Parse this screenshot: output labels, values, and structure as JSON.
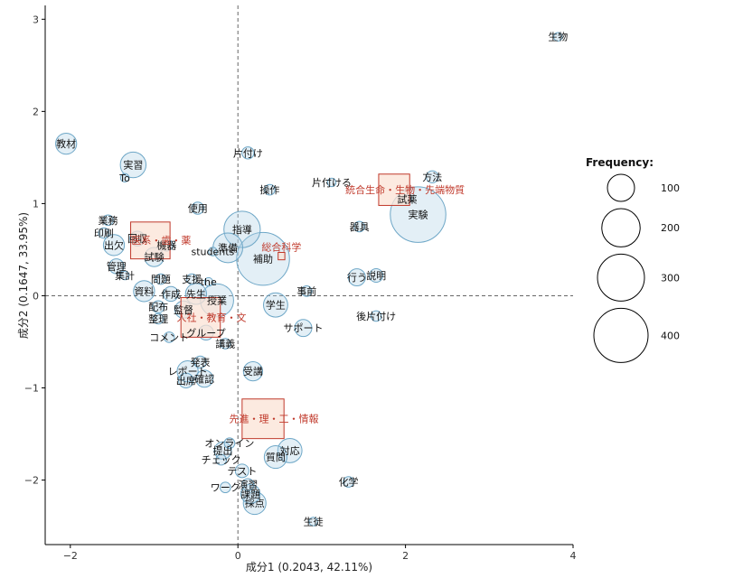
{
  "chart_data": {
    "type": "scatter",
    "subtype": "bubble",
    "title": "",
    "xlabel": "成分1 (0.2043, 42.11%)",
    "ylabel": "成分2 (0.1647, 33.95%)",
    "xlim": [
      -2.3,
      4.0
    ],
    "ylim": [
      -2.7,
      3.15
    ],
    "x_ticks": [
      -2,
      0,
      2,
      4
    ],
    "y_ticks": [
      -2,
      -1,
      0,
      1,
      2,
      3
    ],
    "grid": false,
    "reference_lines": {
      "x": 0,
      "y": 0,
      "style": "dashed"
    },
    "bubble_color": "#aed2e6",
    "bubble_stroke": "#6ea7c7",
    "group_color": "#c0392b",
    "group_fill": "#fbe3d6",
    "legend": {
      "title": "Frequency:",
      "position": "right",
      "sizes": [
        100,
        200,
        300,
        400
      ]
    },
    "points": [
      {
        "label": "生物",
        "x": 3.82,
        "y": 2.81,
        "freq": 10
      },
      {
        "label": "教材",
        "x": -2.05,
        "y": 1.65,
        "freq": 60
      },
      {
        "label": "片付け",
        "x": 0.12,
        "y": 1.55,
        "freq": 20
      },
      {
        "label": "To",
        "x": -1.35,
        "y": 1.28,
        "freq": 10
      },
      {
        "label": "実習",
        "x": -1.25,
        "y": 1.42,
        "freq": 90
      },
      {
        "label": "方法",
        "x": 2.32,
        "y": 1.29,
        "freq": 20
      },
      {
        "label": "片付ける",
        "x": 1.12,
        "y": 1.23,
        "freq": 10
      },
      {
        "label": "操作",
        "x": 0.38,
        "y": 1.15,
        "freq": 15
      },
      {
        "label": "試薬",
        "x": 2.02,
        "y": 1.05,
        "freq": 10
      },
      {
        "label": "実験",
        "x": 2.15,
        "y": 0.88,
        "freq": 420
      },
      {
        "label": "業務",
        "x": -1.55,
        "y": 0.82,
        "freq": 15
      },
      {
        "label": "印刷",
        "x": -1.6,
        "y": 0.68,
        "freq": 15
      },
      {
        "label": "使用",
        "x": -0.48,
        "y": 0.95,
        "freq": 20
      },
      {
        "label": "指導",
        "x": 0.05,
        "y": 0.72,
        "freq": 180
      },
      {
        "label": "回収",
        "x": -1.2,
        "y": 0.62,
        "freq": 30
      },
      {
        "label": "出欠",
        "x": -1.48,
        "y": 0.55,
        "freq": 60
      },
      {
        "label": "機器",
        "x": -0.85,
        "y": 0.55,
        "freq": 20
      },
      {
        "label": "準備",
        "x": -0.12,
        "y": 0.52,
        "freq": 120
      },
      {
        "label": "器具",
        "x": 1.45,
        "y": 0.75,
        "freq": 15
      },
      {
        "label": "試験",
        "x": -1.0,
        "y": 0.42,
        "freq": 50
      },
      {
        "label": "students",
        "x": -0.3,
        "y": 0.48,
        "freq": 10
      },
      {
        "label": "補助",
        "x": 0.3,
        "y": 0.4,
        "freq": 380
      },
      {
        "label": "管理",
        "x": -1.45,
        "y": 0.32,
        "freq": 30
      },
      {
        "label": "説明",
        "x": 1.65,
        "y": 0.22,
        "freq": 25
      },
      {
        "label": "集計",
        "x": -1.35,
        "y": 0.22,
        "freq": 10
      },
      {
        "label": "問題",
        "x": -0.92,
        "y": 0.18,
        "freq": 15
      },
      {
        "label": "支援",
        "x": -0.55,
        "y": 0.18,
        "freq": 15
      },
      {
        "label": "the",
        "x": -0.35,
        "y": 0.15,
        "freq": 10
      },
      {
        "label": "行う",
        "x": 1.42,
        "y": 0.2,
        "freq": 40
      },
      {
        "label": "事前",
        "x": 0.82,
        "y": 0.05,
        "freq": 15
      },
      {
        "label": "資料",
        "x": -1.12,
        "y": 0.05,
        "freq": 60
      },
      {
        "label": "作成",
        "x": -0.8,
        "y": 0.02,
        "freq": 30
      },
      {
        "label": "先生",
        "x": -0.5,
        "y": 0.02,
        "freq": 60
      },
      {
        "label": "授業",
        "x": -0.25,
        "y": -0.05,
        "freq": 150
      },
      {
        "label": "学生",
        "x": 0.45,
        "y": -0.1,
        "freq": 80
      },
      {
        "label": "配布",
        "x": -0.95,
        "y": -0.12,
        "freq": 20
      },
      {
        "label": "監督",
        "x": -0.65,
        "y": -0.15,
        "freq": 40
      },
      {
        "label": "後片付け",
        "x": 1.65,
        "y": -0.22,
        "freq": 15
      },
      {
        "label": "整理",
        "x": -0.95,
        "y": -0.25,
        "freq": 15
      },
      {
        "label": "サポート",
        "x": 0.78,
        "y": -0.35,
        "freq": 40
      },
      {
        "label": "グループ",
        "x": -0.38,
        "y": -0.4,
        "freq": 30
      },
      {
        "label": "コメント",
        "x": -0.82,
        "y": -0.45,
        "freq": 15
      },
      {
        "label": "講義",
        "x": -0.15,
        "y": -0.52,
        "freq": 15
      },
      {
        "label": "レポート",
        "x": -0.6,
        "y": -0.82,
        "freq": 60
      },
      {
        "label": "発表",
        "x": -0.45,
        "y": -0.72,
        "freq": 20
      },
      {
        "label": "受講",
        "x": 0.18,
        "y": -0.82,
        "freq": 50
      },
      {
        "label": "出席",
        "x": -0.62,
        "y": -0.92,
        "freq": 30
      },
      {
        "label": "確認",
        "x": -0.4,
        "y": -0.9,
        "freq": 40
      },
      {
        "label": "オンライン",
        "x": -0.1,
        "y": -1.6,
        "freq": 15
      },
      {
        "label": "提出",
        "x": -0.18,
        "y": -1.68,
        "freq": 40
      },
      {
        "label": "対応",
        "x": 0.62,
        "y": -1.68,
        "freq": 80
      },
      {
        "label": "質問",
        "x": 0.45,
        "y": -1.75,
        "freq": 70
      },
      {
        "label": "チェック",
        "x": -0.2,
        "y": -1.78,
        "freq": 15
      },
      {
        "label": "テスト",
        "x": 0.05,
        "y": -1.9,
        "freq": 25
      },
      {
        "label": "演習",
        "x": 0.12,
        "y": -2.05,
        "freq": 20
      },
      {
        "label": "ワーク",
        "x": -0.15,
        "y": -2.08,
        "freq": 15
      },
      {
        "label": "化学",
        "x": 1.32,
        "y": -2.02,
        "freq": 15
      },
      {
        "label": "課題",
        "x": 0.15,
        "y": -2.15,
        "freq": 50
      },
      {
        "label": "採点",
        "x": 0.2,
        "y": -2.25,
        "freq": 70
      },
      {
        "label": "生徒",
        "x": 0.9,
        "y": -2.45,
        "freq": 10
      }
    ],
    "groups": [
      {
        "label": "医系・歯・薬",
        "x": -1.28,
        "y": 0.8,
        "w": 0.47,
        "h": 0.4
      },
      {
        "label": "統合生命・生物・先端物質",
        "x": 1.68,
        "y": 1.32,
        "w": 0.37,
        "h": 0.34
      },
      {
        "label": "総合科学",
        "x": 0.48,
        "y": 0.47,
        "w": 0.08,
        "h": 0.08
      },
      {
        "label": "人社・教育・文",
        "x": -0.68,
        "y": -0.02,
        "w": 0.47,
        "h": 0.43
      },
      {
        "label": "先進・理・工・情報",
        "x": 0.05,
        "y": -1.12,
        "w": 0.5,
        "h": 0.43
      }
    ]
  }
}
